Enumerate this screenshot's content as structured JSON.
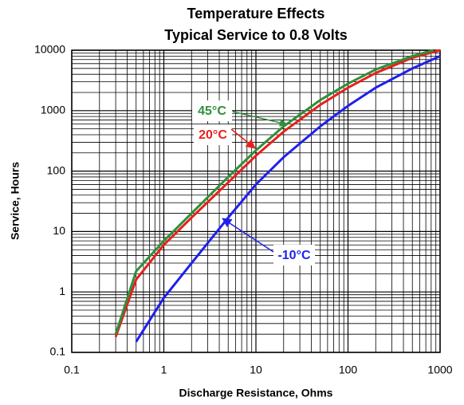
{
  "chart_data": {
    "type": "line",
    "title": [
      "Temperature Effects",
      "Typical Service to 0.8 Volts"
    ],
    "x_label": "Discharge Resistance, Ohms",
    "y_label": "Service, Hours",
    "xscale": "log",
    "yscale": "log",
    "grid": true,
    "minor_grid": true,
    "xlim": [
      0.1,
      1000
    ],
    "ylim": [
      0.1,
      10000
    ],
    "xticks": [
      0.1,
      1,
      10,
      100,
      1000
    ],
    "yticks": [
      0.1,
      1,
      10,
      100,
      1000,
      10000
    ],
    "series": [
      {
        "name": "45°C",
        "color": "#2f8f3a",
        "x": [
          0.3,
          0.5,
          1,
          2,
          5,
          10,
          20,
          50,
          100,
          200,
          500,
          850
        ],
        "values": [
          0.2,
          2.2,
          7,
          20,
          80,
          220,
          550,
          1500,
          2800,
          4800,
          8000,
          10000
        ]
      },
      {
        "name": "20°C",
        "color": "#e8201c",
        "x": [
          0.3,
          0.5,
          1,
          2,
          5,
          10,
          20,
          50,
          100,
          200,
          500,
          1000
        ],
        "values": [
          0.18,
          1.6,
          6,
          17,
          65,
          180,
          450,
          1250,
          2400,
          4200,
          7500,
          10000
        ]
      },
      {
        "name": "-10°C",
        "color": "#1f1fef",
        "x": [
          0.5,
          1,
          2,
          5,
          10,
          20,
          50,
          100,
          200,
          500,
          1000
        ],
        "values": [
          0.15,
          0.8,
          3,
          17,
          60,
          170,
          550,
          1200,
          2400,
          5000,
          8000
        ]
      }
    ]
  }
}
